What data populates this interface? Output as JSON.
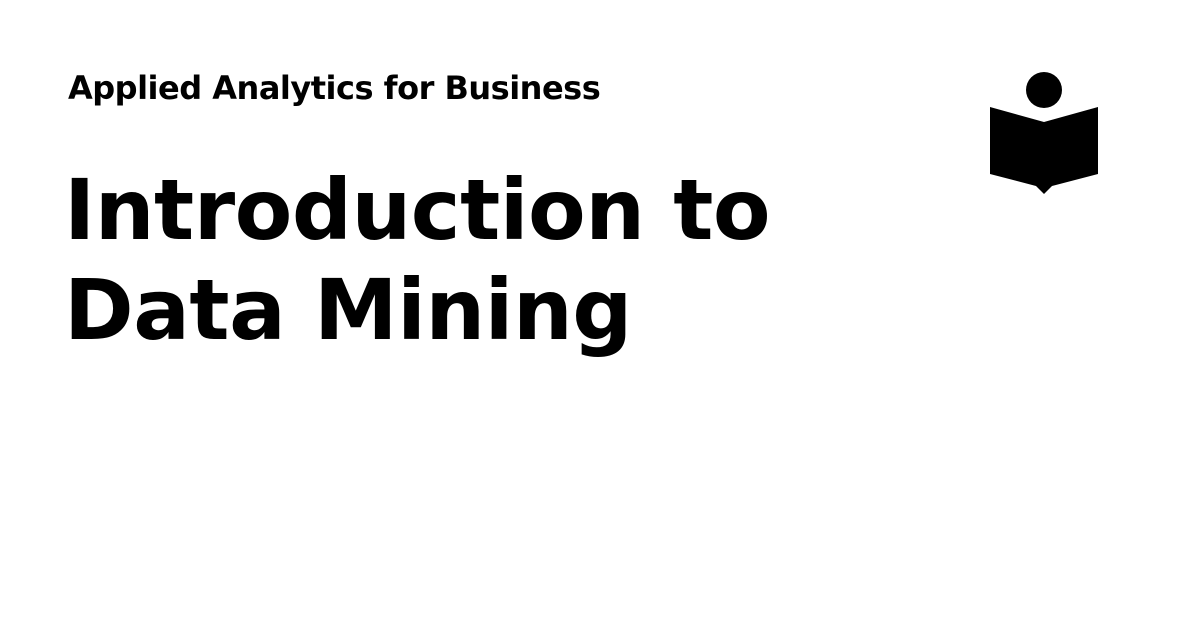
{
  "header": {
    "subtitle": "Applied Analytics for Business"
  },
  "main": {
    "title_lines": [
      "Introduction to",
      "Data Mining"
    ]
  },
  "logo": {
    "icon": "reader-book-icon",
    "color": "#000000"
  },
  "colors": {
    "background": "#ffffff",
    "text": "#000000"
  }
}
